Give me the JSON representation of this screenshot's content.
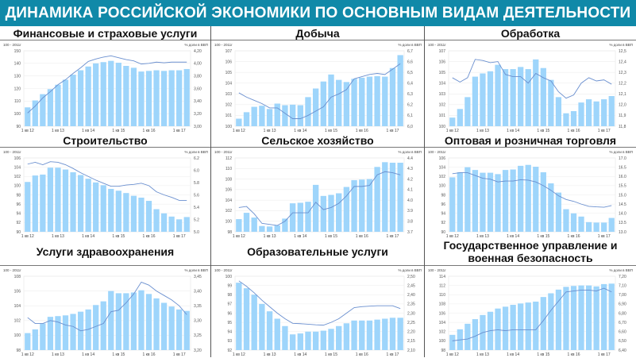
{
  "header": {
    "title": "ДИНАМИКА РОССИЙСКОЙ ЭКОНОМИКИ ПО ОСНОВНЫМ ВИДАМ ДЕЯТЕЛЬНОСТИ"
  },
  "colors": {
    "header": "#1089a8",
    "bar": "#9ed5fb",
    "line": "#6a8fcf"
  },
  "chart_data": [
    {
      "type": "bar+line",
      "title": "Финансовые и страховые услуги",
      "left_caption": "100 - 2011г",
      "right_caption": "% доли в ВВП",
      "x_labels": [
        "1 кв 12",
        "1 кв 13",
        "1 кв 14",
        "1 кв 15",
        "1 кв 16",
        "1 кв 17"
      ],
      "ylim": [
        90,
        150
      ],
      "yticks": [
        "90",
        "100",
        "110",
        "120",
        "130",
        "140",
        "150"
      ],
      "y2lim": [
        3.0,
        4.2
      ],
      "y2ticks": [
        "3,00",
        "3,20",
        "3,40",
        "3,60",
        "3,80",
        "4,00",
        "4,20"
      ],
      "bars": [
        105,
        110.5,
        115.5,
        119.5,
        123,
        127,
        131,
        134.5,
        137.5,
        140,
        141,
        142,
        140.5,
        138,
        136.5,
        133.5,
        134,
        134.5,
        134,
        134.5,
        134.5,
        135.5
      ],
      "line": [
        3.21,
        3.32,
        3.45,
        3.55,
        3.66,
        3.74,
        3.84,
        3.93,
        4.03,
        4.07,
        4.1,
        4.12,
        4.09,
        4.06,
        4.04,
        3.99,
        4.0,
        4.02,
        4.01,
        4.02,
        4.02,
        4.02
      ]
    },
    {
      "type": "bar+line",
      "title": "Добыча",
      "left_caption": "100 - 2011г",
      "right_caption": "% доли в ВВП",
      "x_labels": [
        "1 кв 12",
        "1 кв 13",
        "1 кв 14",
        "1 кв 15",
        "1 кв 16",
        "1 кв 17"
      ],
      "ylim": [
        100,
        107
      ],
      "yticks": [
        "100",
        "101",
        "102",
        "103",
        "104",
        "105",
        "106",
        "107"
      ],
      "y2lim": [
        6.0,
        6.7
      ],
      "y2ticks": [
        "6,0",
        "6,1",
        "6,2",
        "6,3",
        "6,4",
        "6,5",
        "6,6",
        "6,7"
      ],
      "bars": [
        100.7,
        101.3,
        101.8,
        101.9,
        101.6,
        102.1,
        101.95,
        102.0,
        101.95,
        102.7,
        103.5,
        104.15,
        104.8,
        104.3,
        104.1,
        104.4,
        104.5,
        104.6,
        104.65,
        104.6,
        105.4,
        106.6
      ],
      "line": [
        6.31,
        6.27,
        6.24,
        6.21,
        6.17,
        6.17,
        6.12,
        6.07,
        6.07,
        6.1,
        6.14,
        6.18,
        6.27,
        6.3,
        6.34,
        6.44,
        6.46,
        6.48,
        6.49,
        6.48,
        6.53,
        6.58
      ]
    },
    {
      "type": "bar+line",
      "title": "Обработка",
      "left_caption": "100 - 2011г",
      "right_caption": "% доли в ВВП",
      "x_labels": [
        "1 кв 12",
        "1 кв 13",
        "1 кв 14",
        "1 кв 15",
        "1 кв 16",
        "1 кв 17"
      ],
      "ylim": [
        100,
        107
      ],
      "yticks": [
        "100",
        "101",
        "102",
        "103",
        "104",
        "105",
        "106",
        "107"
      ],
      "y2lim": [
        11.8,
        12.5
      ],
      "y2ticks": [
        "11,8",
        "11,9",
        "12,0",
        "12,1",
        "12,2",
        "12,3",
        "12,4",
        "12,5"
      ],
      "bars": [
        100.8,
        101.6,
        102.7,
        104.6,
        104.9,
        105.1,
        105.7,
        105.3,
        105.3,
        105.5,
        105.3,
        106.2,
        105.4,
        104.3,
        102.7,
        101.2,
        101.4,
        102.2,
        102.5,
        102.3,
        102.5,
        102.8
      ],
      "line": [
        12.25,
        12.21,
        12.25,
        12.42,
        12.41,
        12.39,
        12.4,
        12.28,
        12.26,
        12.26,
        12.2,
        12.29,
        12.25,
        12.22,
        12.12,
        12.06,
        12.09,
        12.2,
        12.25,
        12.22,
        12.23,
        12.19
      ]
    },
    {
      "type": "bar+line",
      "title": "Строительство",
      "left_caption": "100 - 2011г",
      "right_caption": "% доли в ВВП",
      "x_labels": [
        "1 кв 12",
        "1 кв 13",
        "1 кв 14",
        "1 кв 15",
        "1 кв 16",
        "1 кв 17"
      ],
      "ylim": [
        90,
        106
      ],
      "yticks": [
        "90",
        "92",
        "94",
        "96",
        "98",
        "100",
        "102",
        "104",
        "106"
      ],
      "y2lim": [
        5.0,
        6.2
      ],
      "y2ticks": [
        "5.0",
        "5.2",
        "5.4",
        "5.6",
        "5.8",
        "6.0",
        "6.2"
      ],
      "bars": [
        100.8,
        102.2,
        102.4,
        103.9,
        103.9,
        103.5,
        102.9,
        102.3,
        101.5,
        100.7,
        100.1,
        99.3,
        98.9,
        98.4,
        97.8,
        97.4,
        96.7,
        94.9,
        94.0,
        93.3,
        92.7,
        93.2
      ],
      "line": [
        6.1,
        6.13,
        6.09,
        6.14,
        6.13,
        6.09,
        6.03,
        5.96,
        5.9,
        5.84,
        5.79,
        5.74,
        5.74,
        5.76,
        5.77,
        5.79,
        5.75,
        5.65,
        5.6,
        5.56,
        5.51,
        5.51
      ]
    },
    {
      "type": "bar+line",
      "title": "Сельское хозяйство",
      "left_caption": "100 - 2011г",
      "right_caption": "% доли в ВВП",
      "x_labels": [
        "1 кв 12",
        "1 кв 13",
        "1 кв 14",
        "1 кв 15",
        "1 кв 16",
        "1 кв 17"
      ],
      "ylim": [
        98,
        112
      ],
      "yticks": [
        "98",
        "100",
        "102",
        "104",
        "106",
        "108",
        "110",
        "112"
      ],
      "y2lim": [
        3.7,
        4.4
      ],
      "y2ticks": [
        "3.7",
        "3.8",
        "3.9",
        "4.0",
        "4.1",
        "4.2",
        "4.3",
        "4.4"
      ],
      "bars": [
        100.4,
        101.6,
        100.7,
        99.1,
        99.0,
        99.2,
        100.5,
        103.4,
        103.5,
        103.7,
        106.9,
        104.8,
        105.0,
        105.3,
        106.5,
        107.8,
        107.9,
        108.0,
        110.3,
        111.2,
        111.1,
        111.1
      ],
      "line": [
        3.93,
        3.94,
        3.87,
        3.78,
        3.77,
        3.76,
        3.8,
        3.88,
        3.88,
        3.88,
        3.98,
        3.91,
        3.93,
        3.97,
        4.04,
        4.13,
        4.13,
        4.14,
        4.24,
        4.27,
        4.26,
        4.24
      ]
    },
    {
      "type": "bar+line",
      "title": "Оптовая и розничная торговля",
      "left_caption": "100 - 2011г",
      "right_caption": "% доли в ВВП",
      "x_labels": [
        "1 кв 12",
        "1 кв 13",
        "1 кв 14",
        "1 кв 15",
        "1 кв 16",
        "1 кв 17"
      ],
      "ylim": [
        90,
        106
      ],
      "yticks": [
        "90",
        "92",
        "94",
        "96",
        "98",
        "100",
        "102",
        "104",
        "106"
      ],
      "y2lim": [
        13.0,
        17.0
      ],
      "y2ticks": [
        "13.0",
        "13.5",
        "14.0",
        "14.5",
        "15.0",
        "15.5",
        "16.0",
        "16.5",
        "17.0"
      ],
      "bars": [
        101.8,
        102.9,
        104.0,
        103.4,
        102.8,
        102.8,
        102.5,
        103.4,
        103.5,
        104.3,
        104.5,
        104.1,
        102.9,
        100.5,
        98.5,
        94.9,
        94.0,
        93.3,
        92.1,
        92.0,
        92.0,
        93.0
      ],
      "line": [
        16.15,
        16.2,
        16.2,
        16.05,
        15.9,
        15.85,
        15.7,
        15.75,
        15.75,
        15.82,
        15.8,
        15.7,
        15.5,
        15.25,
        14.95,
        14.75,
        14.65,
        14.5,
        14.38,
        14.35,
        14.33,
        14.42
      ]
    },
    {
      "type": "bar+line",
      "title": "Услуги здравоохранения",
      "left_caption": "100 - 2011г",
      "right_caption": "% доли в ВВП",
      "x_labels": [
        "1 кв 12",
        "1 кв 13",
        "1 кв 14",
        "1 кв 15",
        "1 кв 16",
        "1 кв 17"
      ],
      "ylim": [
        98,
        108
      ],
      "yticks": [
        "98",
        "100",
        "102",
        "104",
        "106",
        "108"
      ],
      "y2lim": [
        3.2,
        3.45
      ],
      "y2ticks": [
        "3,20",
        "3,25",
        "3,30",
        "3,35",
        "3,40",
        "3,45"
      ],
      "bars": [
        100.3,
        100.8,
        101.6,
        102.5,
        102.6,
        102.7,
        102.9,
        103.2,
        103.5,
        104.1,
        104.6,
        106.0,
        105.7,
        105.7,
        105.8,
        106.1,
        105.6,
        105.0,
        104.4,
        103.9,
        103.5,
        103.3
      ],
      "line": [
        3.31,
        3.29,
        3.29,
        3.3,
        3.295,
        3.285,
        3.28,
        3.265,
        3.27,
        3.28,
        3.29,
        3.33,
        3.335,
        3.36,
        3.39,
        3.43,
        3.42,
        3.4,
        3.385,
        3.37,
        3.35,
        3.32
      ]
    },
    {
      "type": "bar+line",
      "title": "Образовательные услуги",
      "left_caption": "100 - 2011г",
      "right_caption": "% доли в ВВП",
      "x_labels": [
        "1 кв 12",
        "1 кв 13",
        "1 кв 14",
        "1 кв 15",
        "1 кв 16",
        "1 кв 17"
      ],
      "ylim": [
        92,
        100
      ],
      "yticks": [
        "92",
        "93",
        "94",
        "95",
        "96",
        "97",
        "98",
        "99",
        "100"
      ],
      "y2lim": [
        2.1,
        2.5
      ],
      "y2ticks": [
        "2,10",
        "2,15",
        "2,20",
        "2,25",
        "2,30",
        "2,35",
        "2,40",
        "2,45",
        "2,50"
      ],
      "bars": [
        99.3,
        98.7,
        98.0,
        97.0,
        96.2,
        95.4,
        94.6,
        93.7,
        93.8,
        94.0,
        94.0,
        94.1,
        94.3,
        94.6,
        94.9,
        95.2,
        95.2,
        95.2,
        95.3,
        95.4,
        95.5,
        95.5
      ],
      "line": [
        2.475,
        2.445,
        2.41,
        2.37,
        2.335,
        2.3,
        2.27,
        2.245,
        2.243,
        2.24,
        2.237,
        2.235,
        2.25,
        2.27,
        2.3,
        2.33,
        2.335,
        2.338,
        2.34,
        2.34,
        2.34,
        2.325
      ]
    },
    {
      "type": "bar+line",
      "title": "Государственное управление и военная безопасность",
      "left_caption": "100 - 2011г",
      "right_caption": "% доли в ВВП",
      "x_labels": [
        "1 кв 12",
        "1 кв 13",
        "1 кв 14",
        "1 кв 15",
        "1 кв 16",
        "1 кв 17"
      ],
      "ylim": [
        98,
        114
      ],
      "yticks": [
        "98",
        "100",
        "102",
        "104",
        "106",
        "108",
        "110",
        "112",
        "114"
      ],
      "y2lim": [
        6.4,
        7.2
      ],
      "y2ticks": [
        "6,40",
        "6,50",
        "6,60",
        "6,70",
        "6,80",
        "6,90",
        "7,00",
        "7,10",
        "7,20"
      ],
      "bars": [
        101.3,
        102.5,
        103.7,
        104.7,
        105.6,
        106.3,
        107.0,
        107.4,
        107.8,
        108.1,
        108.3,
        108.5,
        109.5,
        110.3,
        111.1,
        111.7,
        111.9,
        112.0,
        112.0,
        111.8,
        112.3,
        112.4
      ],
      "line": [
        6.5,
        6.51,
        6.52,
        6.55,
        6.59,
        6.61,
        6.62,
        6.61,
        6.62,
        6.62,
        6.62,
        6.62,
        6.72,
        6.83,
        6.93,
        7.03,
        7.04,
        7.05,
        7.05,
        7.04,
        7.07,
        7.03
      ]
    }
  ]
}
